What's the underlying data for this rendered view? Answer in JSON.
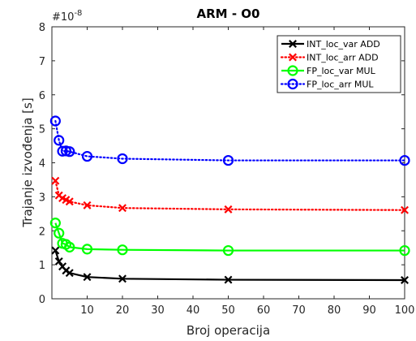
{
  "chart_data": {
    "type": "line",
    "title": "ARM - O0",
    "xlabel": "Broj operacija",
    "ylabel": "Trajanje izvođenja [s]",
    "y_exponent_label": "#10",
    "y_exponent_power": "-8",
    "xlim": [
      0,
      100
    ],
    "ylim": [
      0,
      8
    ],
    "xticks": [
      10,
      20,
      30,
      40,
      50,
      60,
      70,
      80,
      90,
      100
    ],
    "xtick_labels": [
      "10",
      "20",
      "30",
      "40",
      "50",
      "60",
      "70",
      "80",
      "90",
      "100"
    ],
    "yticks": [
      0,
      1,
      2,
      3,
      4,
      5,
      6,
      7,
      8
    ],
    "ytick_labels": [
      "0",
      "1",
      "2",
      "3",
      "4",
      "5",
      "6",
      "7",
      "8"
    ],
    "grid": false,
    "legend_position": "top-right",
    "x": [
      1,
      2,
      3,
      4,
      5,
      10,
      20,
      50,
      100
    ],
    "series": [
      {
        "name": "INT_loc_var ADD",
        "color": "#000000",
        "line_style": "solid",
        "marker": "x",
        "values": [
          1.42,
          1.1,
          0.95,
          0.83,
          0.76,
          0.64,
          0.59,
          0.56,
          0.55
        ]
      },
      {
        "name": "INT_loc_arr ADD",
        "color": "#ff0000",
        "line_style": "dotted",
        "marker": "x",
        "values": [
          3.47,
          3.04,
          2.96,
          2.91,
          2.86,
          2.75,
          2.67,
          2.63,
          2.61
        ]
      },
      {
        "name": "FP_loc_var MUL",
        "color": "#00ff00",
        "line_style": "solid",
        "marker": "o",
        "values": [
          2.23,
          1.93,
          1.63,
          1.6,
          1.52,
          1.46,
          1.44,
          1.42,
          1.42
        ]
      },
      {
        "name": "FP_loc_arr MUL",
        "color": "#0000ff",
        "line_style": "dotted",
        "marker": "o",
        "values": [
          5.23,
          4.66,
          4.34,
          4.35,
          4.33,
          4.19,
          4.12,
          4.07,
          4.07
        ]
      }
    ]
  }
}
